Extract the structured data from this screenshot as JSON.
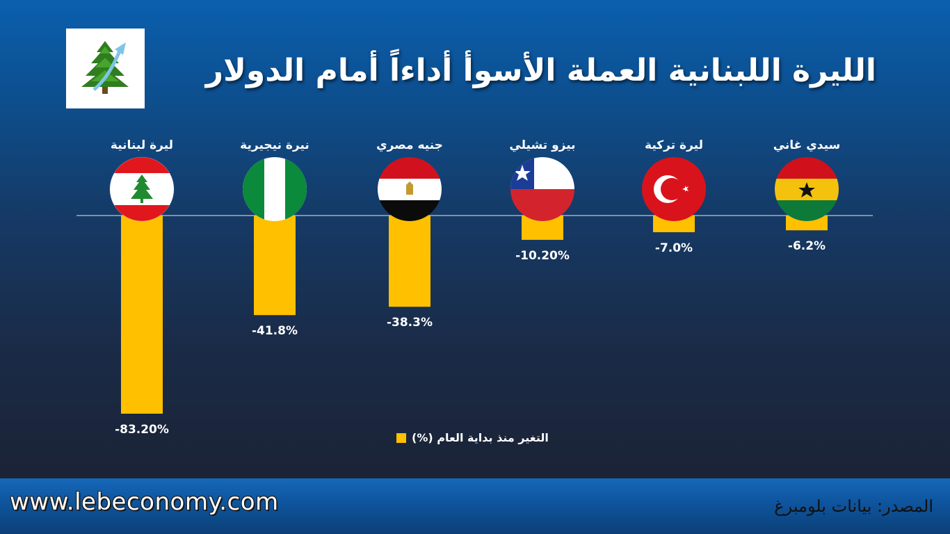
{
  "title": "الليرة اللبنانية العملة الأسوأ أداءاً أمام الدولار",
  "logo": {
    "icon": "cedar-tree-with-rising-arrow-icon"
  },
  "chart_data": {
    "type": "bar",
    "categories": [
      "ليرة لبنانية",
      "نيرة نيجيرية",
      "جنيه مصري",
      "بيزو تشيلي",
      "ليرة تركية",
      "سيدي غاني"
    ],
    "value_labels": [
      "-83.20%",
      "-41.8%",
      "-38.3%",
      "-10.20%",
      "-7.0%",
      "-6.2%"
    ],
    "series": [
      {
        "name": "التغير منذ بداية العام (%)",
        "values": [
          -83.2,
          -41.8,
          -38.3,
          -10.2,
          -7.0,
          -6.2
        ]
      }
    ],
    "flags": [
      "lebanon-flag-icon",
      "nigeria-flag-icon",
      "egypt-flag-icon",
      "chile-flag-icon",
      "turkey-flag-icon",
      "ghana-flag-icon"
    ],
    "bar_color": "#ffc000",
    "ylim": [
      -83.2,
      0
    ],
    "legend_position": "bottom-center",
    "grid": false
  },
  "legend": {
    "label": "التغير منذ بداية العام (%)"
  },
  "footer": {
    "website": "www.lebeconomy.com",
    "source": "المصدر: بيانات بلومبرغ"
  },
  "colors": {
    "bar": "#ffc000",
    "background_top": "#0a5fae",
    "background_bottom": "#1b2335",
    "footer": "#0f56a0"
  }
}
